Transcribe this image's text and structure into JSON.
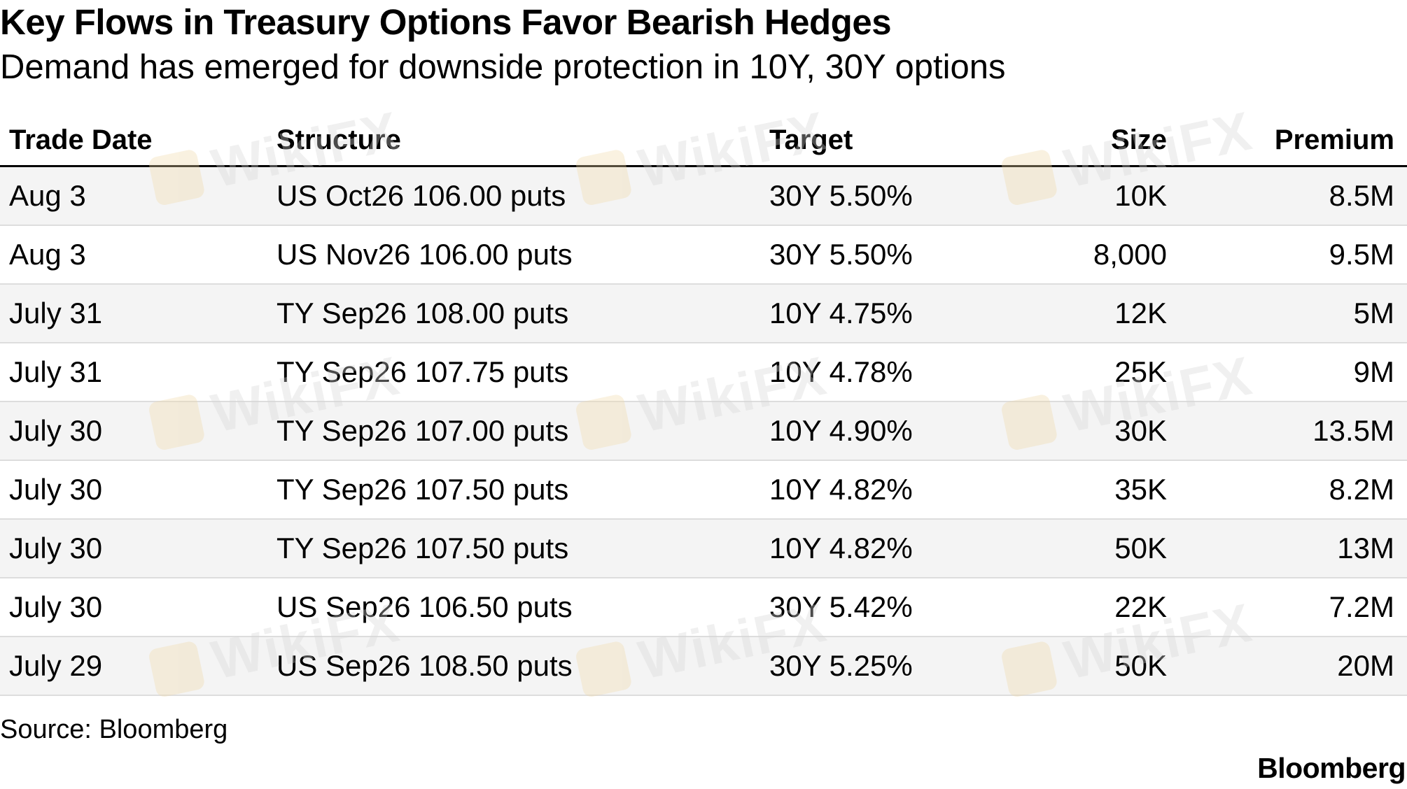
{
  "chart_data": {
    "type": "table",
    "title": "Key Flows in Treasury Options Favor Bearish Hedges",
    "subtitle": "Demand has emerged for downside protection in 10Y, 30Y options",
    "columns": [
      "Trade Date",
      "Structure",
      "Target",
      "Size",
      "Premium"
    ],
    "rows": [
      [
        "Aug 3",
        "US Oct26 106.00 puts",
        "30Y 5.50%",
        "10K",
        "8.5M"
      ],
      [
        "Aug 3",
        "US Nov26 106.00 puts",
        "30Y 5.50%",
        "8,000",
        "9.5M"
      ],
      [
        "July 31",
        "TY Sep26 108.00 puts",
        "10Y 4.75%",
        "12K",
        "5M"
      ],
      [
        "July 31",
        "TY Sep26 107.75 puts",
        "10Y 4.78%",
        "25K",
        "9M"
      ],
      [
        "July 30",
        "TY Sep26 107.00 puts",
        "10Y 4.90%",
        "30K",
        "13.5M"
      ],
      [
        "July 30",
        "TY Sep26 107.50 puts",
        "10Y 4.82%",
        "35K",
        "8.2M"
      ],
      [
        "July 30",
        "TY Sep26 107.50 puts",
        "10Y 4.82%",
        "50K",
        "13M"
      ],
      [
        "July 30",
        "US Sep26 106.50 puts",
        "30Y 5.42%",
        "22K",
        "7.2M"
      ],
      [
        "July 29",
        "US Sep26 108.50 puts",
        "30Y 5.25%",
        "50K",
        "20M"
      ]
    ],
    "source": "Source: Bloomberg",
    "brand": "Bloomberg"
  },
  "watermark": {
    "text": "WikiFX",
    "logo_icon": "wikifx-logo-icon",
    "logo_color": "#f0d9a8",
    "text_color": "#d6d6d6"
  },
  "colors": {
    "text": "#000000",
    "row_shade": "#f4f4f4",
    "row_rule": "#dddddd",
    "header_rule": "#000000"
  }
}
